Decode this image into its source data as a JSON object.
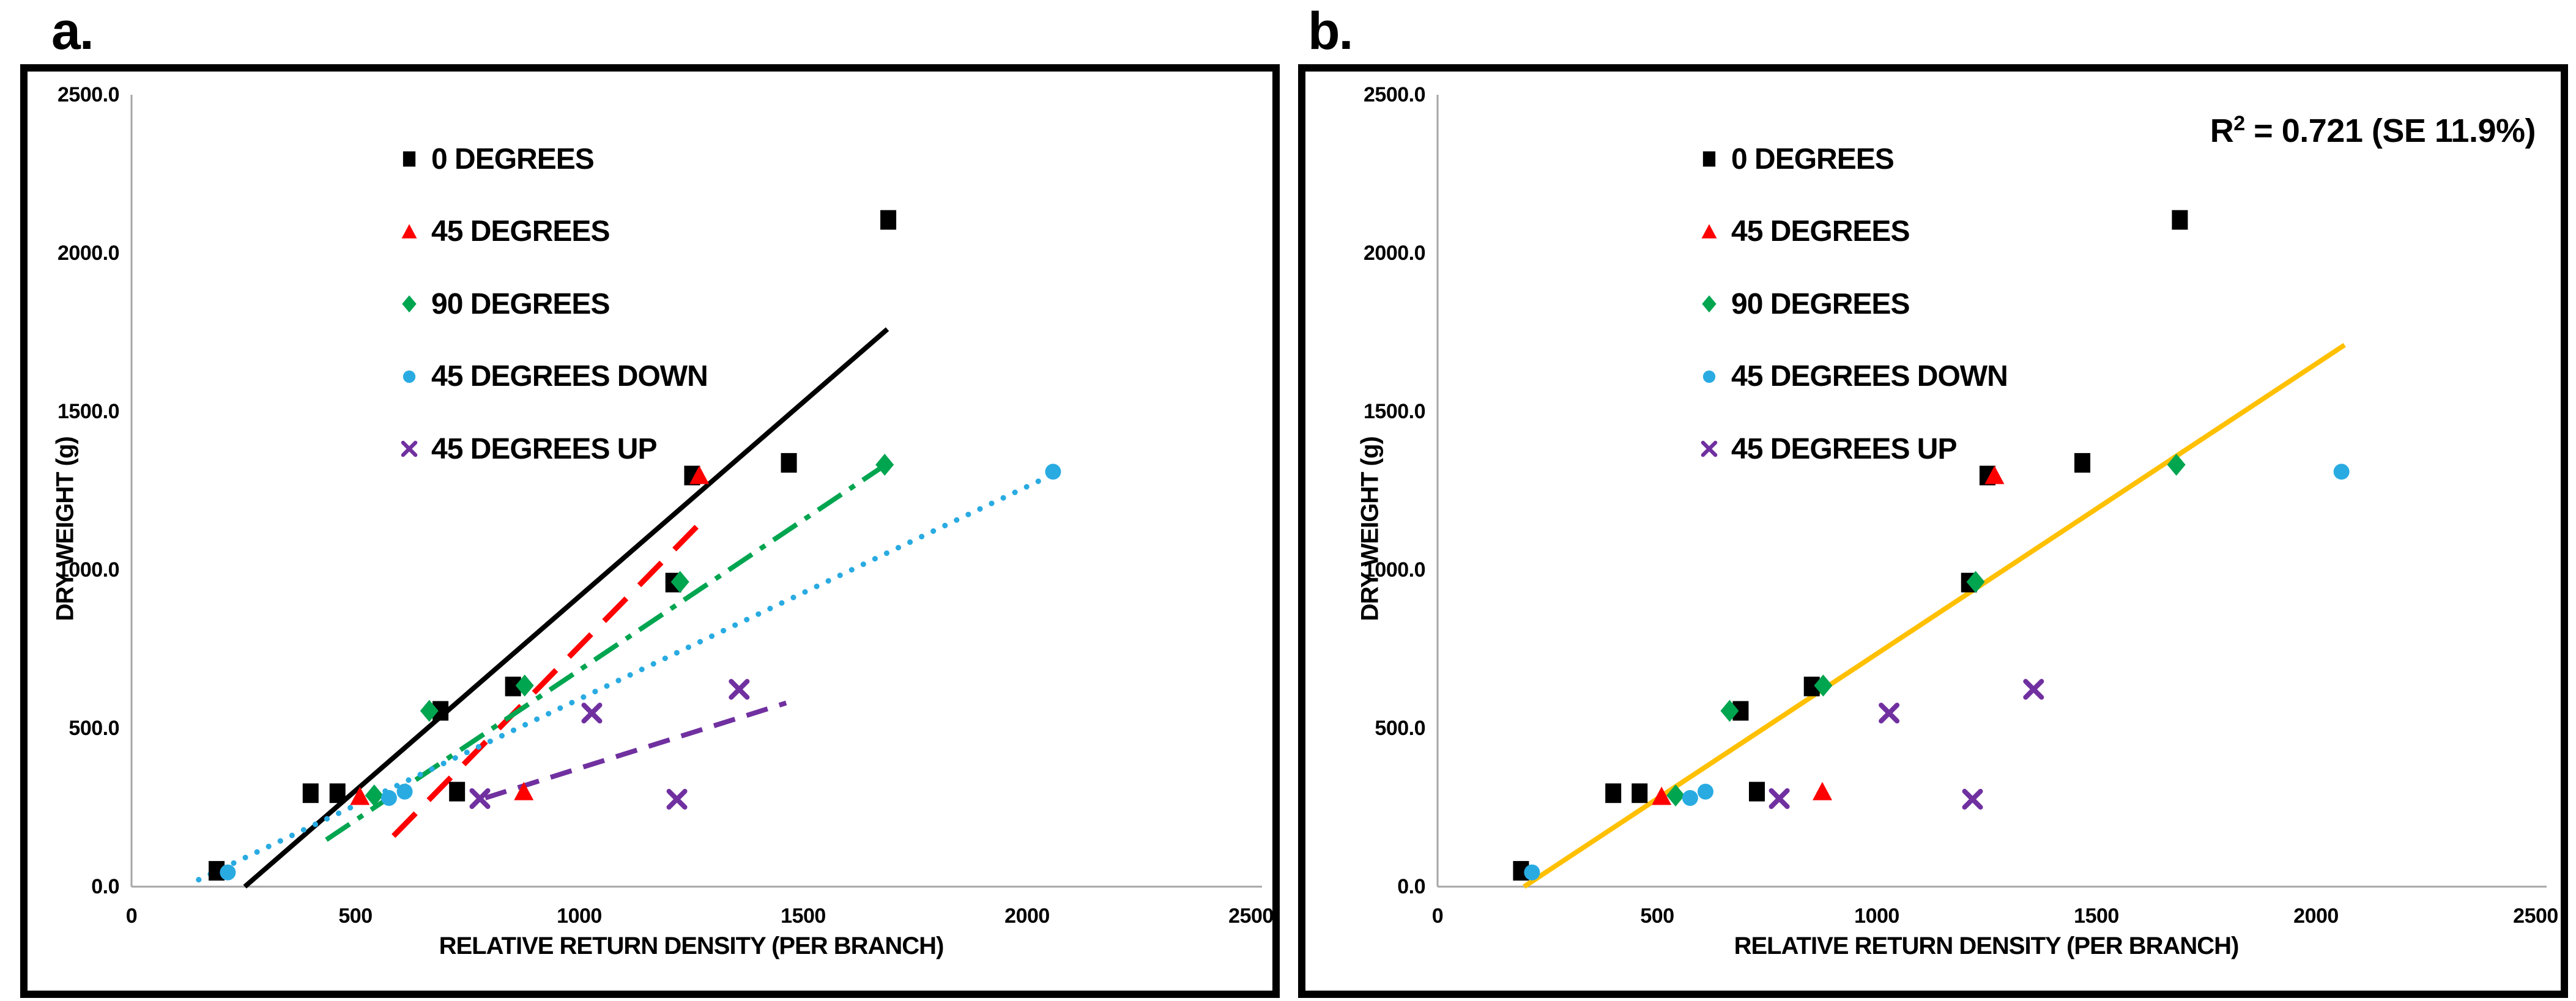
{
  "figure": {
    "background": "#ffffff",
    "panel_a_label": "a.",
    "panel_b_label": "b."
  },
  "colors": {
    "axis_line": "#A6A6A6",
    "series_0_degrees": "#000000",
    "series_45_degrees": "#FF0000",
    "series_90_degrees": "#00A550",
    "series_45_down": "#29ABE2",
    "series_45_up": "#7030A0",
    "fit_line_gold": "#FFC000"
  },
  "chart_data": [
    {
      "id": "a",
      "panel_label": "a.",
      "type": "scatter",
      "xlabel": "RELATIVE RETURN DENSITY (PER BRANCH)",
      "ylabel": "DRY WEIGHT (g)",
      "xlim": [
        0,
        2500
      ],
      "ylim": [
        0,
        2500
      ],
      "xticks": [
        "0",
        "500",
        "1000",
        "1500",
        "2000",
        "2500"
      ],
      "yticks": [
        "0.0",
        "500.0",
        "1000.0",
        "1500.0",
        "2000.0",
        "2500.0"
      ],
      "grid": false,
      "legend_position": "upper-left-inside",
      "annotation": {
        "r": "",
        "sup": "",
        "rest": ""
      },
      "legend": [
        {
          "label": "0 DEGREES",
          "marker": "square",
          "color": "#000000"
        },
        {
          "label": "45 DEGREES",
          "marker": "triangle",
          "color": "#FF0000"
        },
        {
          "label": "90 DEGREES",
          "marker": "diamond",
          "color": "#00A550"
        },
        {
          "label": "45 DEGREES DOWN",
          "marker": "circle",
          "color": "#29ABE2"
        },
        {
          "label": "45 DEGREES UP",
          "marker": "x",
          "color": "#7030A0"
        }
      ],
      "series": [
        {
          "name": "0 DEGREES",
          "marker": "square",
          "color": "#000000",
          "points": [
            [
              190,
              50
            ],
            [
              400,
              295
            ],
            [
              460,
              295
            ],
            [
              690,
              555
            ],
            [
              727,
              300
            ],
            [
              852,
              632
            ],
            [
              1210,
              960
            ],
            [
              1252,
              1298
            ],
            [
              1468,
              1338
            ],
            [
              1690,
              2105
            ]
          ]
        },
        {
          "name": "45 DEGREES",
          "marker": "triangle",
          "color": "#FF0000",
          "points": [
            [
              510,
              285
            ],
            [
              876,
              300
            ],
            [
              1268,
              1298
            ]
          ]
        },
        {
          "name": "90 DEGREES",
          "marker": "diamond",
          "color": "#00A550",
          "points": [
            [
              542,
              288
            ],
            [
              665,
              555
            ],
            [
              878,
              635
            ],
            [
              1225,
              962
            ],
            [
              1682,
              1332
            ]
          ]
        },
        {
          "name": "45 DEGREES DOWN",
          "marker": "circle",
          "color": "#29ABE2",
          "points": [
            [
              215,
              45
            ],
            [
              575,
              280
            ],
            [
              610,
              300
            ],
            [
              2058,
              1310
            ]
          ]
        },
        {
          "name": "45 DEGREES UP",
          "marker": "x",
          "color": "#7030A0",
          "points": [
            [
              778,
              278
            ],
            [
              1028,
              548
            ],
            [
              1218,
              276
            ],
            [
              1357,
              623
            ]
          ]
        }
      ],
      "trendlines": [
        {
          "series": "0 DEGREES",
          "color": "#000000",
          "style": "solid",
          "from": [
            253,
            0
          ],
          "to": [
            1688,
            1760
          ]
        },
        {
          "series": "45 DEGREES",
          "color": "#FF0000",
          "style": "long-dash",
          "from": [
            585,
            160
          ],
          "to": [
            1268,
            1145
          ]
        },
        {
          "series": "90 DEGREES",
          "color": "#00A550",
          "style": "dash-dot",
          "from": [
            435,
            148
          ],
          "to": [
            1682,
            1330
          ]
        },
        {
          "series": "45 DEGREES DOWN",
          "color": "#29ABE2",
          "style": "dot",
          "from": [
            150,
            22
          ],
          "to": [
            2058,
            1302
          ]
        },
        {
          "series": "45 DEGREES UP",
          "color": "#7030A0",
          "style": "dash",
          "from": [
            790,
            280
          ],
          "to": [
            1462,
            580
          ]
        }
      ]
    },
    {
      "id": "b",
      "panel_label": "b.",
      "type": "scatter",
      "xlabel": "RELATIVE RETURN DENSITY (PER BRANCH)",
      "ylabel": "DRY WEIGHT (g)",
      "xlim": [
        0,
        2500
      ],
      "ylim": [
        0,
        2500
      ],
      "xticks": [
        "0",
        "500",
        "1000",
        "1500",
        "2000",
        "2500"
      ],
      "yticks": [
        "0.0",
        "500.0",
        "1000.0",
        "1500.0",
        "2000.0",
        "2500.0"
      ],
      "grid": false,
      "legend_position": "upper-left-inside",
      "annotation": {
        "r": "R",
        "sup": "2",
        "rest": " = 0.721  (SE 11.9%)"
      },
      "legend": [
        {
          "label": "0 DEGREES",
          "marker": "square",
          "color": "#000000"
        },
        {
          "label": "45 DEGREES",
          "marker": "triangle",
          "color": "#FF0000"
        },
        {
          "label": "90 DEGREES",
          "marker": "diamond",
          "color": "#00A550"
        },
        {
          "label": "45 DEGREES DOWN",
          "marker": "circle",
          "color": "#29ABE2"
        },
        {
          "label": "45 DEGREES UP",
          "marker": "x",
          "color": "#7030A0"
        }
      ],
      "series": [
        {
          "name": "0 DEGREES",
          "marker": "square",
          "color": "#000000",
          "points": [
            [
              190,
              50
            ],
            [
              400,
              295
            ],
            [
              460,
              295
            ],
            [
              690,
              555
            ],
            [
              727,
              300
            ],
            [
              852,
              632
            ],
            [
              1210,
              960
            ],
            [
              1252,
              1298
            ],
            [
              1468,
              1338
            ],
            [
              1690,
              2105
            ]
          ]
        },
        {
          "name": "45 DEGREES",
          "marker": "triangle",
          "color": "#FF0000",
          "points": [
            [
              510,
              285
            ],
            [
              876,
              300
            ],
            [
              1268,
              1298
            ]
          ]
        },
        {
          "name": "90 DEGREES",
          "marker": "diamond",
          "color": "#00A550",
          "points": [
            [
              542,
              288
            ],
            [
              665,
              555
            ],
            [
              878,
              635
            ],
            [
              1225,
              962
            ],
            [
              1682,
              1332
            ]
          ]
        },
        {
          "name": "45 DEGREES DOWN",
          "marker": "circle",
          "color": "#29ABE2",
          "points": [
            [
              215,
              45
            ],
            [
              575,
              280
            ],
            [
              610,
              300
            ],
            [
              2058,
              1310
            ]
          ]
        },
        {
          "name": "45 DEGREES UP",
          "marker": "x",
          "color": "#7030A0",
          "points": [
            [
              778,
              278
            ],
            [
              1028,
              548
            ],
            [
              1218,
              276
            ],
            [
              1357,
              623
            ]
          ]
        }
      ],
      "trendlines": [
        {
          "series": "ALL DATA",
          "color": "#FFC000",
          "style": "solid",
          "from": [
            197,
            0
          ],
          "to": [
            2065,
            1710
          ]
        }
      ]
    }
  ]
}
